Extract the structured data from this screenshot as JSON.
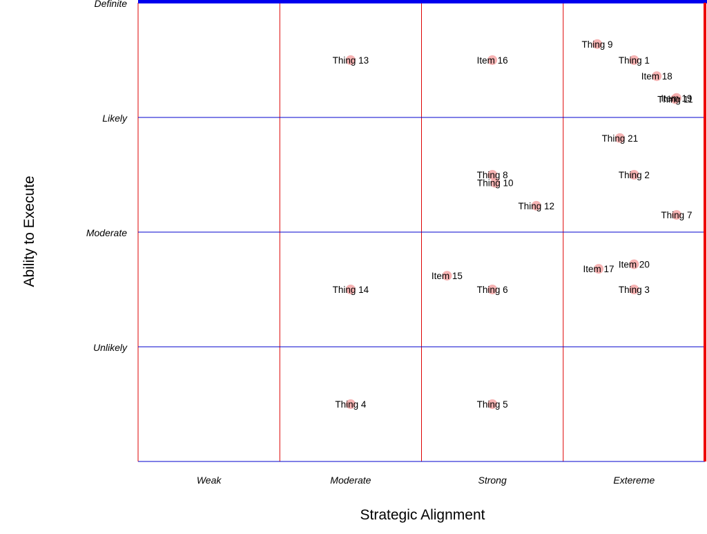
{
  "chart_data": {
    "type": "scatter",
    "title": "",
    "xlabel": "Strategic Alignment",
    "ylabel": "Ability to Execute",
    "x_categories": [
      "Weak",
      "Moderate",
      "Strong",
      "Extereme"
    ],
    "y_categories": [
      "Unlikely",
      "Moderate",
      "Likely",
      "Definite"
    ],
    "xlim": [
      0,
      4
    ],
    "ylim": [
      0,
      4
    ],
    "grid": true,
    "colors": {
      "point": "#f4a6a6",
      "vertical_grid": "#dd0000",
      "horizontal_grid": "#0000cc",
      "top_border": "#0000ee",
      "right_border": "#ee0000"
    },
    "points": [
      {
        "label": "Thing 1",
        "x": 3.5,
        "y": 3.5
      },
      {
        "label": "Thing 2",
        "x": 3.5,
        "y": 2.5
      },
      {
        "label": "Thing 3",
        "x": 3.5,
        "y": 1.5
      },
      {
        "label": "Thing 4",
        "x": 1.5,
        "y": 0.5
      },
      {
        "label": "Thing 5",
        "x": 2.5,
        "y": 0.5
      },
      {
        "label": "Thing 6",
        "x": 2.5,
        "y": 1.5
      },
      {
        "label": "Thing 7",
        "x": 3.8,
        "y": 2.15
      },
      {
        "label": "Thing 8",
        "x": 2.5,
        "y": 2.5
      },
      {
        "label": "Thing 9",
        "x": 3.24,
        "y": 3.64
      },
      {
        "label": "Thing 10",
        "x": 2.52,
        "y": 2.43
      },
      {
        "label": "Thing 11",
        "x": 3.79,
        "y": 3.16
      },
      {
        "label": "Thing 12",
        "x": 2.81,
        "y": 2.23
      },
      {
        "label": "Thing 13",
        "x": 1.5,
        "y": 3.5
      },
      {
        "label": "Thing 14",
        "x": 1.5,
        "y": 1.5
      },
      {
        "label": "Item 15",
        "x": 2.18,
        "y": 1.62
      },
      {
        "label": "Item 16",
        "x": 2.5,
        "y": 3.5
      },
      {
        "label": "Item 17",
        "x": 3.25,
        "y": 1.68
      },
      {
        "label": "Item 18",
        "x": 3.66,
        "y": 3.36
      },
      {
        "label": "Item 19",
        "x": 3.8,
        "y": 3.17
      },
      {
        "label": "Item 20",
        "x": 3.5,
        "y": 1.72
      },
      {
        "label": "Thing 21",
        "x": 3.4,
        "y": 2.82
      }
    ]
  }
}
